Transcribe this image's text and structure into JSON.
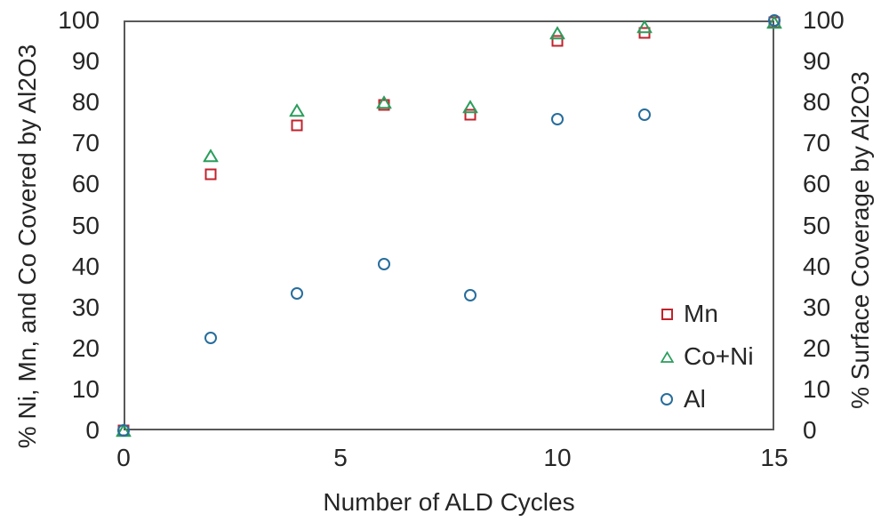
{
  "chart_data": {
    "type": "scatter",
    "title": "",
    "xlabel": "Number of ALD Cycles",
    "ylabel_left": "% Ni, Mn, and Co Covered by Al2O3",
    "ylabel_right": "% Surface Coverage by Al2O3",
    "xlim": [
      0,
      15
    ],
    "ylim": [
      0,
      100
    ],
    "x_ticks": [
      0,
      5,
      10,
      15
    ],
    "y_ticks": [
      0,
      10,
      20,
      30,
      40,
      50,
      60,
      70,
      80,
      90,
      100
    ],
    "grid": false,
    "legend_position": "inside-right",
    "axis_color": "#595959",
    "text_color": "#262626",
    "background": "#ffffff",
    "x": [
      0,
      2,
      4,
      6,
      8,
      10,
      12,
      15
    ],
    "series": [
      {
        "name": "Mn",
        "marker": "square",
        "color": "#c0232c",
        "values": [
          0,
          62.5,
          74.5,
          79.5,
          77,
          95,
          97,
          99.5
        ]
      },
      {
        "name": "Co+Ni",
        "marker": "triangle",
        "color": "#2a9d5c",
        "values": [
          0,
          67,
          78,
          80,
          79,
          97,
          98.5,
          99.5
        ]
      },
      {
        "name": "Al",
        "marker": "circle",
        "color": "#266d9c",
        "values": [
          0,
          22.5,
          33.5,
          40.5,
          33,
          76,
          77,
          100
        ]
      }
    ]
  }
}
